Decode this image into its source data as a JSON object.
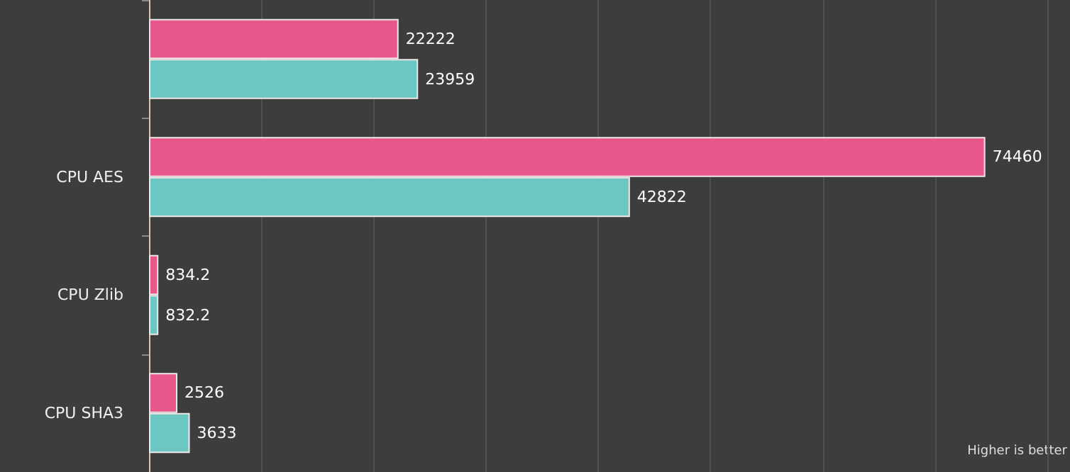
{
  "chart_data": {
    "type": "bar",
    "orientation": "horizontal",
    "categories": [
      null,
      "CPU AES",
      "CPU Zlib",
      "CPU SHA3"
    ],
    "series": [
      {
        "color": "#e8578c",
        "values": [
          22222,
          74460,
          834.2,
          2526
        ]
      },
      {
        "color": "#6cc7c2",
        "values": [
          23959,
          42822,
          832.2,
          3633
        ]
      }
    ],
    "xlim": [
      0,
      82000
    ],
    "xticks": [
      {
        "value": 0,
        "label": null
      },
      {
        "value": 10000,
        "label": null
      },
      {
        "value": 20000,
        "label": null
      },
      {
        "value": 30000,
        "label": null
      },
      {
        "value": 40000,
        "label": null
      },
      {
        "value": 50000,
        "label": null
      },
      {
        "value": 60000,
        "label": null
      },
      {
        "value": 70000,
        "label": null
      },
      {
        "value": 80000,
        "label": null
      }
    ],
    "grid": "x",
    "tick_labels": "y",
    "data_labels": true,
    "annotations": [
      "Higher is better"
    ]
  }
}
